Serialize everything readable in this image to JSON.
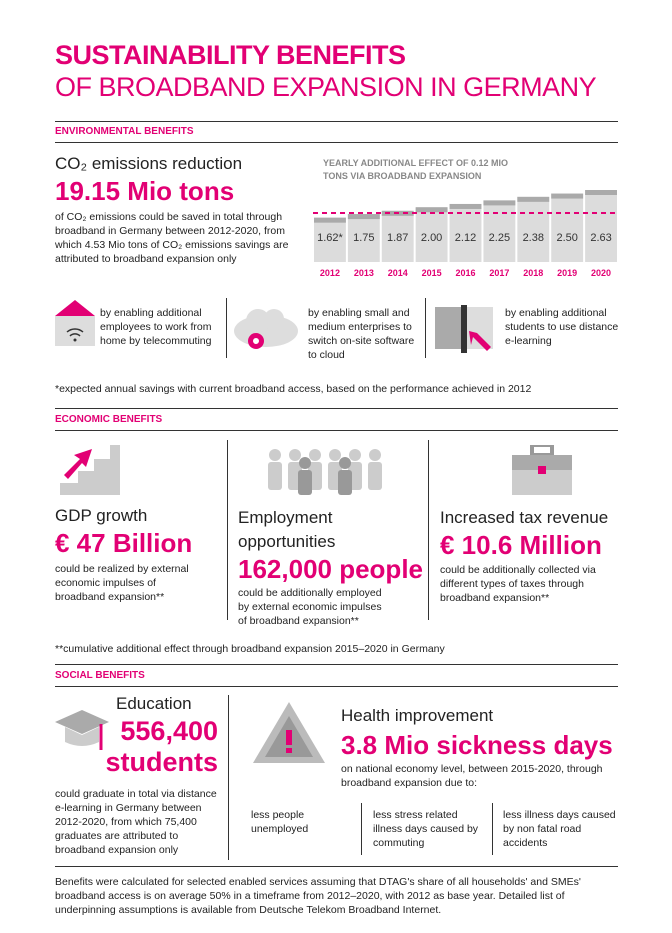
{
  "title": {
    "line1": "SUSTAINABILITY BENEFITS",
    "line2": "OF BROADBAND EXPANSION IN GERMANY"
  },
  "environmental": {
    "heading": "ENVIRONMENTAL BENEFITS",
    "subtitle": "CO₂ emissions reduction",
    "figure": "19.15 Mio tons",
    "text": "of CO₂ emissions could be saved in total through broadband in Germany between 2012-2020, from which 4.53 Mio tons of CO₂ emissions savings are attributed to broadband expansion only",
    "items": [
      "by enabling additional employees to work from home by telecommuting",
      "by enabling small and medium enterprises to switch on-site software to cloud",
      "by enabling additional students to use distance e-learning"
    ],
    "footnote": "*expected annual savings with current broadband access, based on the performance achieved in 2012"
  },
  "chart_data": {
    "type": "bar",
    "title": "YEARLY ADDITIONAL EFFECT OF 0.12 MIO TONS VIA BROADBAND EXPANSION",
    "categories": [
      "2012",
      "2013",
      "2014",
      "2015",
      "2016",
      "2017",
      "2018",
      "2019",
      "2020"
    ],
    "values": [
      1.62,
      1.75,
      1.87,
      2.0,
      2.12,
      2.25,
      2.38,
      2.5,
      2.63
    ],
    "value_labels": [
      "1.62*",
      "1.75",
      "1.87",
      "2.00",
      "2.12",
      "2.25",
      "2.38",
      "2.50",
      "2.63"
    ],
    "color": "#dcdcdc"
  },
  "economic": {
    "heading": "ECONOMIC BENEFITS",
    "columns": [
      {
        "subtitle": "GDP growth",
        "figure": "€ 47 Billion",
        "text": "could be realized by external economic impulses of broadband expansion**"
      },
      {
        "subtitle": "Employment opportunities",
        "figure": "162,000 people",
        "text": "could be additionally employed by external economic impulses of broadband expansion**"
      },
      {
        "subtitle": "Increased tax revenue",
        "figure": "€ 10.6 Million",
        "text": "could be additionally collected via different types of taxes through broadband expansion**"
      }
    ],
    "footnote": "**cumulative additional effect through broadband expansion 2015–2020 in Germany"
  },
  "social": {
    "heading": "SOCIAL BENEFITS",
    "education": {
      "subtitle": "Education",
      "figure": "556,400",
      "figure_unit": "students",
      "text": "could graduate in total via distance e-learning in Germany between 2012-2020, from which 75,400 graduates are attributed to broadband expansion only"
    },
    "health": {
      "subtitle": "Health improvement",
      "figure": "3.8 Mio sickness days",
      "text": "on national economy level, between 2015-2020, through broadband expansion due to:",
      "items": [
        "less people unemployed",
        "less stress related illness days caused by commuting",
        "less illness days caused by non fatal road accidents"
      ]
    }
  },
  "footer": "Benefits were calculated for selected enabled services assuming that DTAG's share of all households' and SMEs' broadband access is on average 50% in a timeframe from 2012–2020, with 2012 as base year. Detailed list of underpinning assumptions is available from Deutsche Telekom Broadband Internet."
}
